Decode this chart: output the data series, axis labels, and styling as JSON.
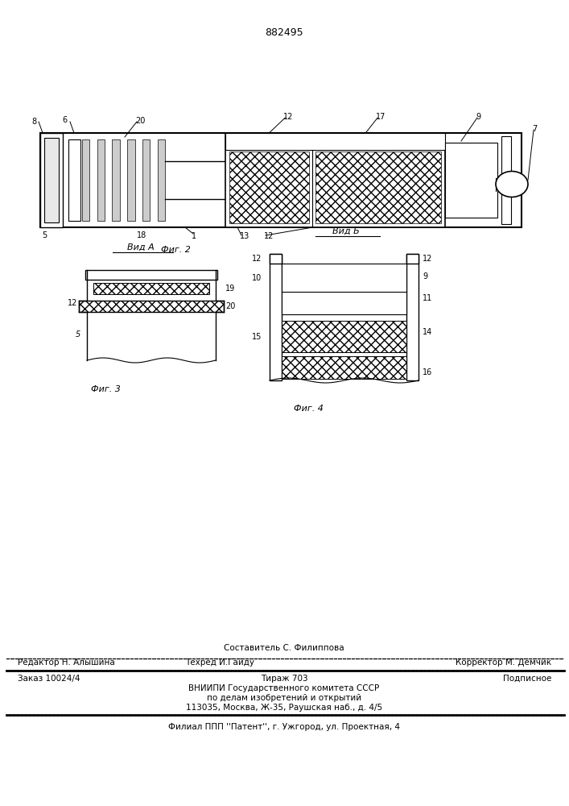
{
  "patent_number": "882495",
  "bg_color": "#ffffff",
  "fig2_label": "Фиг. 2",
  "fig3_label": "Фиг. 3",
  "fig4_label": "Фиг. 4",
  "vida_label": "Вид А",
  "vidb_label": "Вид Б",
  "footer_sestavitel": "Составитель С. Филиппова",
  "footer_redaktor": "Редактор Н. Алышина",
  "footer_tehred": "Техред И.Гайду",
  "footer_korrektor": "Корректор М. Демчик",
  "footer_zakaz": "Заказ 10024/4",
  "footer_tirazh": "Тираж 703",
  "footer_podpisnoe": "Подписное",
  "footer_vniip1": "ВНИИПИ Государственного комитета СССР",
  "footer_vniip2": "по делам изобретений и открытий",
  "footer_vniip3": "113035, Москва, Ж-35, Раушская наб., д. 4/5",
  "footer_filial": "Филиал ППП ''Патент'', г. Ужгород, ул. Проектная, 4"
}
